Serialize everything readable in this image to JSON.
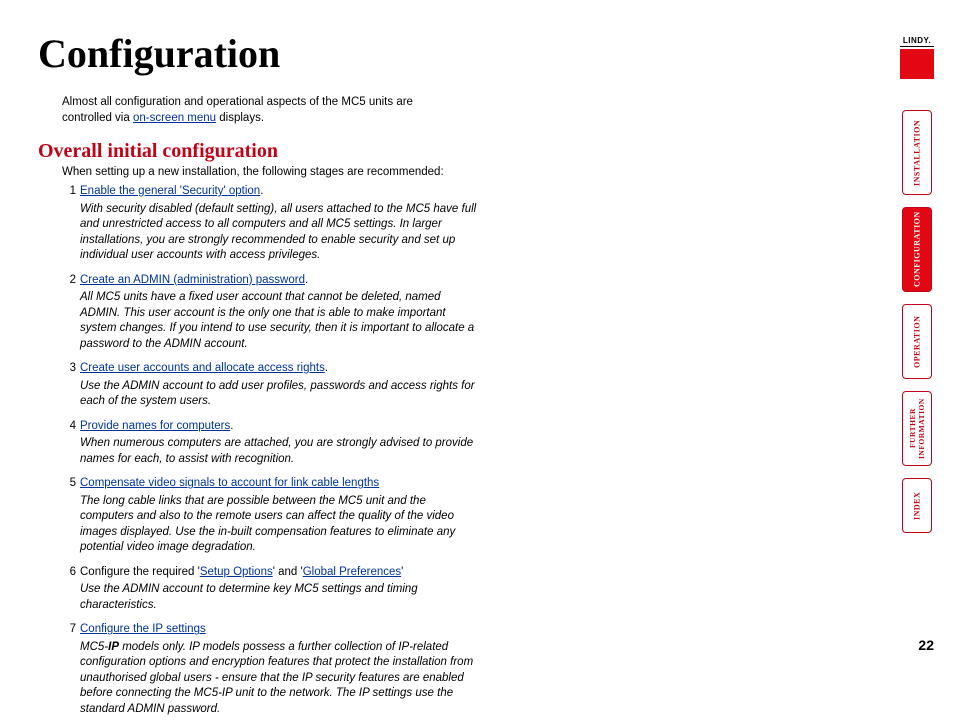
{
  "title": "Configuration",
  "logo": {
    "text": "LINDY."
  },
  "intro_pre": "Almost all configuration and operational aspects of the MC5 units are controlled via ",
  "intro_link": "on-screen menu",
  "intro_post": " displays.",
  "section_heading": "Overall initial configuration",
  "section_intro": "When setting up a new installation, the following stages are recommended:",
  "steps": [
    {
      "num": "1",
      "link": "Enable the general 'Security' option",
      "link_post": ".",
      "body": "With security disabled (default setting), all users attached to the MC5 have full and unrestricted access to all computers and all MC5 settings. In larger installations, you are strongly recommended to enable security and set up individual user accounts with access privileges."
    },
    {
      "num": "2",
      "link": "Create an ADMIN (administration) password",
      "link_post": ".",
      "body": "All MC5 units have a fixed user account that cannot be deleted, named ADMIN. This user account is the only one that is able to make important system changes. If you intend to use security, then it is important to allocate a password to the ADMIN account."
    },
    {
      "num": "3",
      "link": "Create user accounts and allocate access rights",
      "link_post": ".",
      "body": "Use the ADMIN account to add user profiles, passwords and access rights for each of the system users."
    },
    {
      "num": "4",
      "link": "Provide names for computers",
      "link_post": ".",
      "body": "When numerous computers are attached, you are strongly advised to provide names for each, to assist with recognition."
    },
    {
      "num": "5",
      "link": "Compensate video signals to account for link cable lengths",
      "link_post": "",
      "body": "The long cable links that are possible between the MC5 unit and the computers and also to the remote users can affect the quality of the video images displayed. Use the in-built compensation features to eliminate any potential video image degradation."
    }
  ],
  "step6": {
    "num": "6",
    "pre": "Configure the required '",
    "link1": "Setup Options",
    "mid": "' and '",
    "link2": "Global Preferences",
    "post": "'",
    "body": "Use the ADMIN account to determine key MC5 settings and timing characteristics."
  },
  "step7": {
    "num": "7",
    "link": "Configure the IP settings",
    "body_pre": "MC5-",
    "body_bold": "IP",
    "body_post": " models only. IP models possess a further collection of IP-related configuration options and encryption features that protect the installation from unauthorised global users - ensure that the IP security features are enabled before connecting the MC5-IP unit to the network. The IP settings use the standard ADMIN password."
  },
  "tabs": [
    {
      "label": "INSTALLATION",
      "active": false,
      "size": "tall"
    },
    {
      "label": "CONFIGURATION",
      "active": true,
      "size": "tall"
    },
    {
      "label": "OPERATION",
      "active": false,
      "size": "med"
    },
    {
      "label": "FURTHER INFORMATION",
      "active": false,
      "size": "med"
    },
    {
      "label": "INDEX",
      "active": false,
      "size": "short"
    }
  ],
  "page_number": "22",
  "colors": {
    "accent": "#c00418",
    "accent_fill": "#e30613",
    "link": "#003399"
  }
}
